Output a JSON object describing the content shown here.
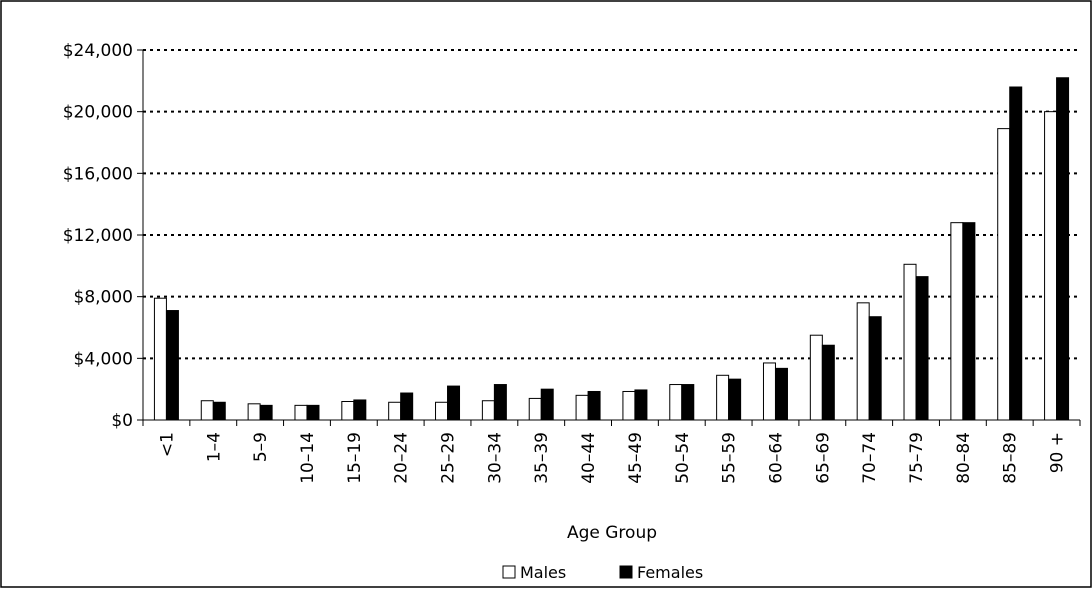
{
  "chart_data": {
    "type": "bar",
    "title": "",
    "xlabel": "Age Group",
    "ylabel": "",
    "ylim": [
      0,
      24000
    ],
    "yticks": [
      0,
      4000,
      8000,
      12000,
      16000,
      20000,
      24000
    ],
    "ytick_labels": [
      "$0",
      "$4,000",
      "$8,000",
      "$12,000",
      "$16,000",
      "$20,000",
      "$24,000"
    ],
    "grid": "horizontal dotted",
    "legend_position": "bottom",
    "categories": [
      "<1",
      "1–4",
      "5–9",
      "10–14",
      "15–19",
      "20–24",
      "25–29",
      "30–34",
      "35–39",
      "40–44",
      "45–49",
      "50–54",
      "55–59",
      "60–64",
      "65–69",
      "70–74",
      "75–79",
      "80–84",
      "85–89",
      "90 +"
    ],
    "series": [
      {
        "name": "Males",
        "color": "#ffffff",
        "values": [
          7900,
          1250,
          1050,
          950,
          1200,
          1150,
          1150,
          1250,
          1400,
          1600,
          1850,
          2300,
          2900,
          3700,
          5500,
          7600,
          10100,
          12800,
          18900,
          20000
        ]
      },
      {
        "name": "Females",
        "color": "#000000",
        "values": [
          7100,
          1150,
          950,
          950,
          1300,
          1750,
          2200,
          2300,
          2000,
          1850,
          1950,
          2300,
          2650,
          3350,
          4850,
          6700,
          9300,
          12800,
          21600,
          22200
        ]
      }
    ]
  }
}
